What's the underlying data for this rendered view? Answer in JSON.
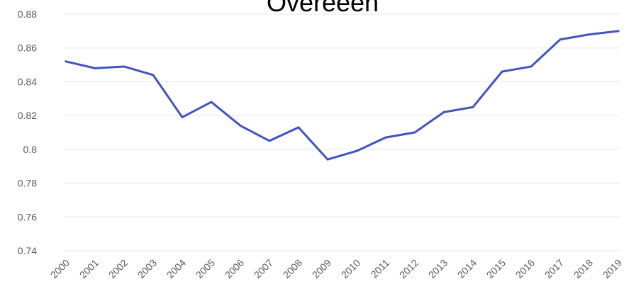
{
  "chart_data": {
    "type": "line",
    "title": "Overeeen",
    "xlabel": "",
    "ylabel": "",
    "categories": [
      "2000",
      "2001",
      "2002",
      "2003",
      "2004",
      "2005",
      "2006",
      "2007",
      "2008",
      "2009",
      "2010",
      "2011",
      "2012",
      "2013",
      "2014",
      "2015",
      "2016",
      "2017",
      "2018",
      "2019"
    ],
    "series": [
      {
        "values": [
          0.852,
          0.848,
          0.849,
          0.844,
          0.819,
          0.828,
          0.814,
          0.805,
          0.813,
          0.794,
          0.799,
          0.807,
          0.81,
          0.822,
          0.825,
          0.846,
          0.849,
          0.865,
          0.868,
          0.87
        ],
        "color": "#4055c0"
      }
    ],
    "ylim": [
      0.74,
      0.88
    ],
    "yticks": [
      "0.74",
      "0.76",
      "0.78",
      "0.8",
      "0.82",
      "0.84",
      "0.86",
      "0.88"
    ],
    "grid": true,
    "legend": "none"
  }
}
